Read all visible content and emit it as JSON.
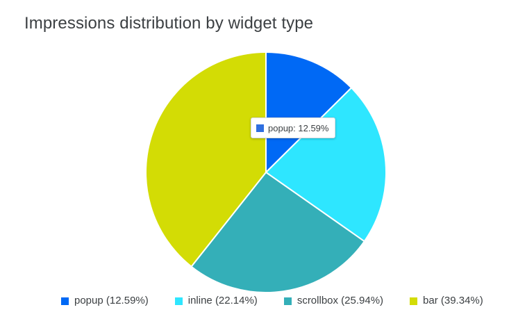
{
  "chart_data": {
    "type": "pie",
    "title": "Impressions distribution by widget type",
    "slices": [
      {
        "label": "popup",
        "value": 12.59,
        "legend": "popup (12.59%)",
        "color": "#0069f5"
      },
      {
        "label": "inline",
        "value": 22.14,
        "legend": "inline (22.14%)",
        "color": "#2ee6ff"
      },
      {
        "label": "scrollbox",
        "value": 25.94,
        "legend": "scrollbox (25.94%)",
        "color": "#34afb8"
      },
      {
        "label": "bar",
        "value": 39.34,
        "legend": "bar (39.34%)",
        "color": "#d3dc05"
      }
    ],
    "legend_position": "bottom",
    "tooltip": {
      "text": "popup: 12.59%",
      "color": "#2f6fe0"
    }
  }
}
